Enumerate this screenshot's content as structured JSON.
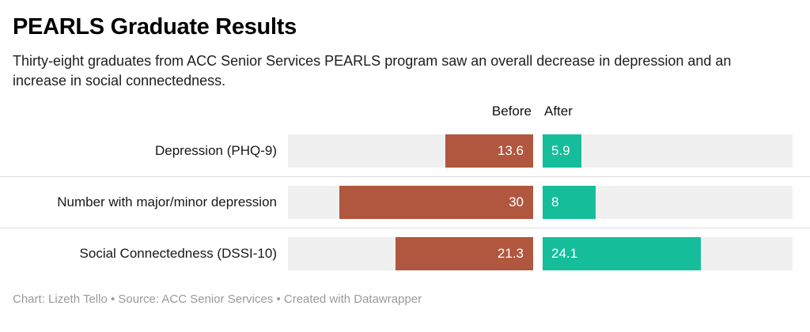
{
  "header": {
    "title": "PEARLS Graduate Results",
    "subtitle": "Thirty-eight graduates from ACC Senior Services PEARLS program saw an overall decrease in depression and an increase in social connectedness."
  },
  "chart_data": {
    "type": "bar",
    "orientation": "horizontal",
    "title": "PEARLS Graduate Results",
    "categories": [
      "Depression (PHQ-9)",
      "Number with major/minor depression",
      "Social Connectedness (DSSI-10)"
    ],
    "series": [
      {
        "name": "Before",
        "values": [
          13.6,
          30,
          21.3
        ],
        "labels": [
          "13.6",
          "30",
          "21.3"
        ],
        "color": "#b1563f"
      },
      {
        "name": "After",
        "values": [
          5.9,
          8,
          24.1
        ],
        "labels": [
          "5.9",
          "8",
          "24.1"
        ],
        "color": "#15bd9b"
      }
    ],
    "xlim": [
      0,
      38
    ],
    "track_color": "#f0f0f0",
    "grid": false,
    "legend_position": "top"
  },
  "footer": {
    "text": "Chart: Lizeth Tello • Source: ACC Senior Services • Created with Datawrapper"
  }
}
